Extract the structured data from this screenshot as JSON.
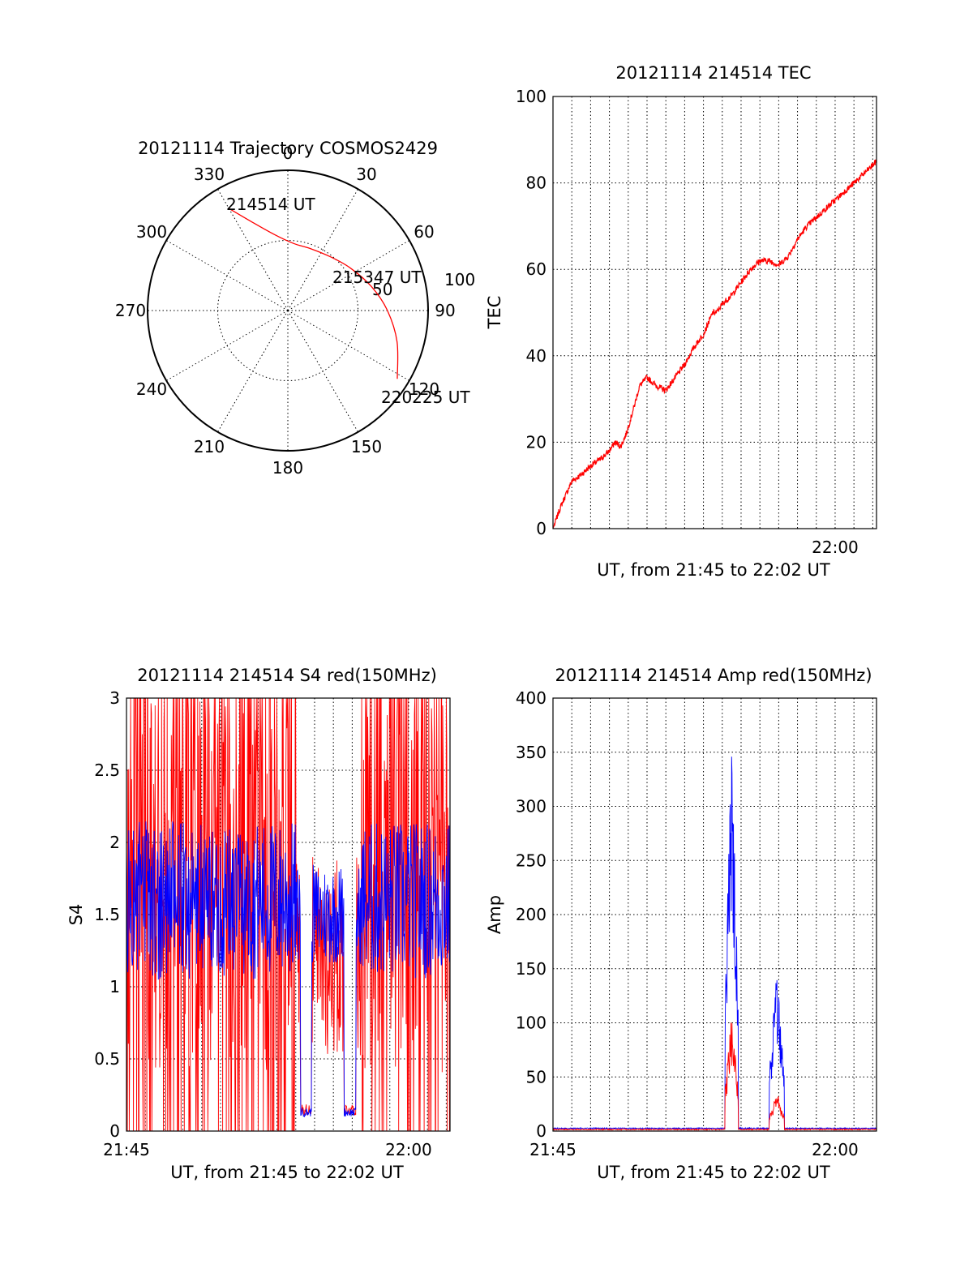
{
  "colors": {
    "red": "#ff0000",
    "blue": "#0000ff",
    "axis": "#000000"
  },
  "chart_data": [
    {
      "type": "polar",
      "title": "20121114 Trajectory COSMOS2429",
      "azimuth_labels": [
        "0",
        "30",
        "60",
        "90",
        "120",
        "150",
        "180",
        "210",
        "240",
        "270",
        "300",
        "330"
      ],
      "ring_labels": [
        "50",
        "100"
      ],
      "rlim": [
        0,
        100
      ],
      "trajectory": {
        "color": "red",
        "points": [
          {
            "azimuth": 330,
            "distance": 84
          },
          {
            "azimuth": 338,
            "distance": 68
          },
          {
            "azimuth": 350,
            "distance": 55
          },
          {
            "azimuth": 5,
            "distance": 48
          },
          {
            "azimuth": 20,
            "distance": 47
          },
          {
            "azimuth": 39,
            "distance": 49
          },
          {
            "azimuth": 56,
            "distance": 54
          },
          {
            "azimuth": 74,
            "distance": 62
          },
          {
            "azimuth": 90,
            "distance": 71
          },
          {
            "azimuth": 106,
            "distance": 81
          },
          {
            "azimuth": 122,
            "distance": 92
          }
        ],
        "annotations": [
          {
            "text": "214514 UT",
            "azimuth": 330
          },
          {
            "text": "215347 UT",
            "azimuth": 56
          },
          {
            "text": "220225 UT",
            "azimuth": 122
          }
        ]
      }
    },
    {
      "type": "line",
      "title": "20121114 214514 TEC",
      "xlabel": "UT, from 21:45 to 22:02 UT",
      "ylabel": "TEC",
      "xlim": [
        0,
        17.2
      ],
      "ylim": [
        0,
        100
      ],
      "yticks": [
        "0",
        "20",
        "40",
        "60",
        "80",
        "100"
      ],
      "xticks": [
        {
          "label": "22:00",
          "x": 15
        }
      ],
      "series": [
        {
          "color": "red",
          "x": [
            0,
            0.4,
            0.8,
            1.0,
            1.5,
            2.0,
            2.5,
            3.0,
            3.3,
            3.6,
            3.9,
            4.3,
            4.6,
            5.0,
            5.5,
            6.0,
            6.5,
            7.0,
            7.5,
            8.0,
            8.5,
            8.7,
            9.0,
            9.5,
            10.0,
            10.5,
            11.0,
            11.5,
            12.0,
            12.5,
            13.0,
            13.5,
            14.0,
            14.5,
            15.0,
            15.5,
            16.0,
            16.5,
            17.2
          ],
          "y": [
            0,
            5,
            9,
            11,
            12.5,
            14.5,
            16,
            18,
            20,
            19,
            22,
            28,
            33,
            35,
            33,
            32,
            35,
            38,
            42,
            45,
            50,
            50,
            52,
            54,
            57,
            60,
            62,
            62,
            61,
            63,
            67,
            70,
            72,
            74,
            76,
            78,
            80,
            82,
            85
          ]
        }
      ]
    },
    {
      "type": "line",
      "title": "20121114 214514 S4 red(150MHz)",
      "xlabel": "UT, from 21:45 to 22:02 UT",
      "ylabel": "S4",
      "xlim": [
        0,
        17.2
      ],
      "ylim": [
        0,
        3
      ],
      "yticks": [
        "0",
        "0.5",
        "1",
        "1.5",
        "2",
        "2.5",
        "3"
      ],
      "xticks": [
        {
          "label": "21:45",
          "x": 0
        },
        {
          "label": "22:00",
          "x": 15
        }
      ],
      "series": [
        {
          "color": "red",
          "envelope": "noisy, clipped at 3 and spiking to 0 between 0-9.2 and 12.5-17.2; near 0.15 in dips 9.2-9.9 and 11.5-12.2"
        },
        {
          "color": "blue",
          "mean": 1.6,
          "dips": [
            {
              "x": [
                9.3,
                9.8
              ],
              "value": 0.12
            },
            {
              "x": [
                11.6,
                12.2
              ],
              "value": 0.15
            }
          ]
        }
      ]
    },
    {
      "type": "line",
      "title": "20121114 214514 Amp red(150MHz)",
      "xlabel": "UT, from 21:45 to 22:02 UT",
      "ylabel": "Amp",
      "xlim": [
        0,
        17.2
      ],
      "ylim": [
        0,
        400
      ],
      "yticks": [
        "0",
        "50",
        "100",
        "150",
        "200",
        "250",
        "300",
        "350",
        "400"
      ],
      "xticks": [
        {
          "label": "21:45",
          "x": 0
        },
        {
          "label": "22:00",
          "x": 15
        }
      ],
      "series": [
        {
          "color": "red",
          "baseline": 1,
          "bursts": [
            {
              "x": [
                9.15,
                9.85
              ],
              "peak": 105
            },
            {
              "x": [
                11.5,
                12.3
              ],
              "peak": 35
            }
          ]
        },
        {
          "color": "blue",
          "baseline": 2,
          "bursts": [
            {
              "x": [
                9.15,
                9.85
              ],
              "peak": 347
            },
            {
              "x": [
                11.5,
                12.3
              ],
              "peak": 140
            }
          ]
        }
      ]
    }
  ]
}
